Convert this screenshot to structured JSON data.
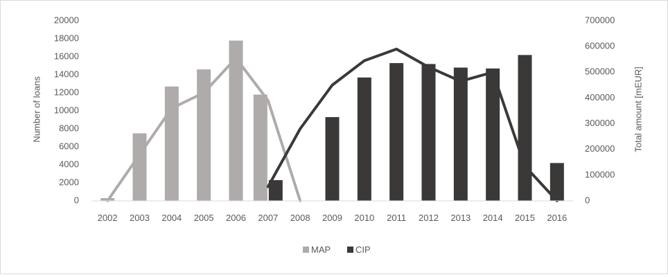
{
  "chart_data": {
    "type": "bar",
    "categories": [
      "2002",
      "2003",
      "2004",
      "2005",
      "2006",
      "2007",
      "2008",
      "2009",
      "2010",
      "2011",
      "2012",
      "2013",
      "2014",
      "2015",
      "2016"
    ],
    "series": [
      {
        "name": "MAP",
        "kind": "bar",
        "axis": "left",
        "color": "#afabab",
        "values": [
          300,
          7500,
          12700,
          14600,
          17800,
          11800,
          null,
          null,
          null,
          null,
          null,
          null,
          null,
          null,
          null
        ]
      },
      {
        "name": "CIP",
        "kind": "bar",
        "axis": "left",
        "color": "#3b3838",
        "values": [
          null,
          null,
          null,
          null,
          null,
          2300,
          null,
          9300,
          13700,
          15300,
          15200,
          14800,
          14700,
          16200,
          4200
        ]
      },
      {
        "kind": "line",
        "axis": "right",
        "color": "#afabab",
        "values": [
          0,
          180000,
          360000,
          420000,
          555000,
          390000,
          0,
          null,
          null,
          null,
          null,
          null,
          null,
          null,
          null
        ]
      },
      {
        "kind": "line",
        "axis": "right",
        "color": "#3b3838",
        "values": [
          null,
          null,
          null,
          null,
          null,
          55000,
          280000,
          450000,
          545000,
          590000,
          520000,
          465000,
          500000,
          135000,
          0
        ]
      }
    ],
    "ylabel": "Number of loans",
    "ylabel_right": "Total amount [mEUR]",
    "ylim": [
      0,
      20000
    ],
    "ylim_right": [
      0,
      700000
    ],
    "yticks": [
      "0",
      "2000",
      "4000",
      "6000",
      "8000",
      "10000",
      "12000",
      "14000",
      "16000",
      "18000",
      "20000"
    ],
    "yticks_right": [
      "0",
      "100000",
      "200000",
      "300000",
      "400000",
      "500000",
      "600000",
      "700000"
    ],
    "grid": false,
    "legend": {
      "placement": "bottom",
      "entries": [
        "MAP",
        "CIP"
      ]
    }
  }
}
